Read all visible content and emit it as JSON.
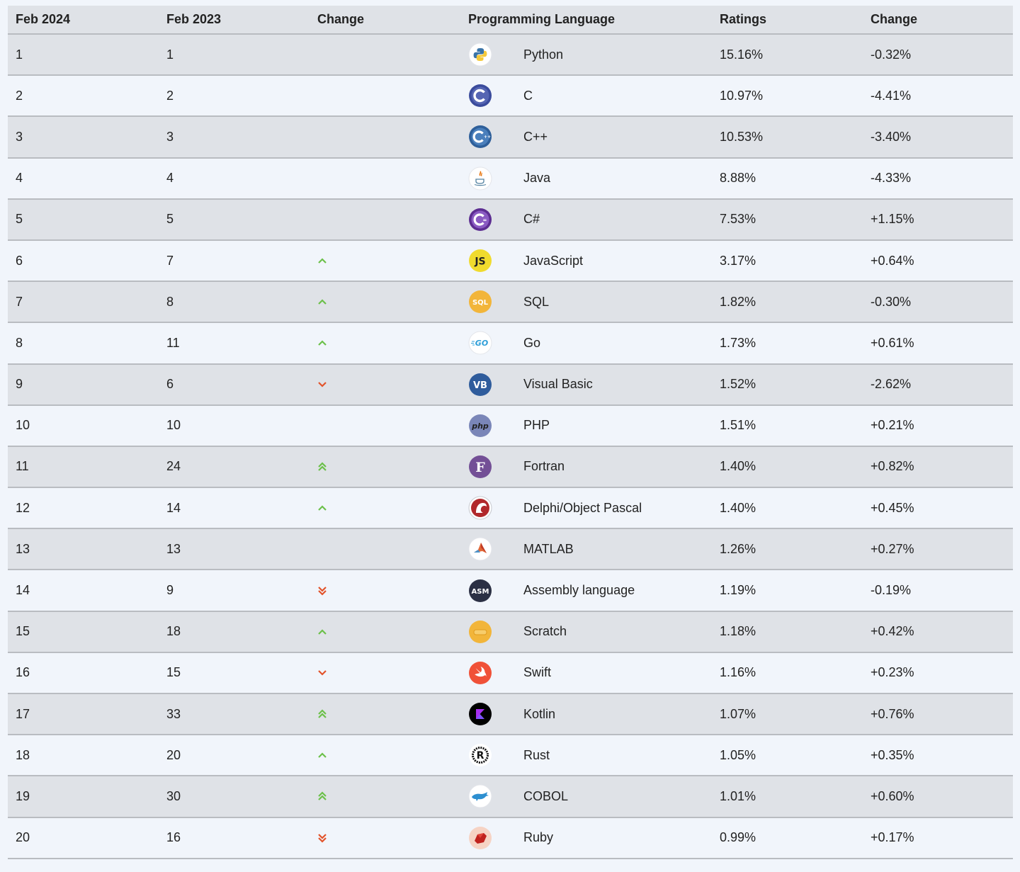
{
  "header": {
    "col_feb2024": "Feb 2024",
    "col_feb2023": "Feb 2023",
    "col_change": "Change",
    "col_language": "Programming Language",
    "col_ratings": "Ratings",
    "col_change2": "Change"
  },
  "colors": {
    "up": "#6cc04a",
    "down": "#e2532a",
    "row_alt": "#dfe2e7",
    "row_plain": "#f1f5fb",
    "border": "#b9bcc1"
  },
  "rows": [
    {
      "rank2024": "1",
      "rank2023": "1",
      "trend": "none",
      "icon": "python-icon",
      "language": "Python",
      "rating": "15.16%",
      "change": "-0.32%"
    },
    {
      "rank2024": "2",
      "rank2023": "2",
      "trend": "none",
      "icon": "c-icon",
      "language": "C",
      "rating": "10.97%",
      "change": "-4.41%"
    },
    {
      "rank2024": "3",
      "rank2023": "3",
      "trend": "none",
      "icon": "cpp-icon",
      "language": "C++",
      "rating": "10.53%",
      "change": "-3.40%"
    },
    {
      "rank2024": "4",
      "rank2023": "4",
      "trend": "none",
      "icon": "java-icon",
      "language": "Java",
      "rating": "8.88%",
      "change": "-4.33%"
    },
    {
      "rank2024": "5",
      "rank2023": "5",
      "trend": "none",
      "icon": "csharp-icon",
      "language": "C#",
      "rating": "7.53%",
      "change": "+1.15%"
    },
    {
      "rank2024": "6",
      "rank2023": "7",
      "trend": "up",
      "icon": "javascript-icon",
      "language": "JavaScript",
      "rating": "3.17%",
      "change": "+0.64%"
    },
    {
      "rank2024": "7",
      "rank2023": "8",
      "trend": "up",
      "icon": "sql-icon",
      "language": "SQL",
      "rating": "1.82%",
      "change": "-0.30%"
    },
    {
      "rank2024": "8",
      "rank2023": "11",
      "trend": "up",
      "icon": "go-icon",
      "language": "Go",
      "rating": "1.73%",
      "change": "+0.61%"
    },
    {
      "rank2024": "9",
      "rank2023": "6",
      "trend": "down",
      "icon": "visual-basic-icon",
      "language": "Visual Basic",
      "rating": "1.52%",
      "change": "-2.62%"
    },
    {
      "rank2024": "10",
      "rank2023": "10",
      "trend": "none",
      "icon": "php-icon",
      "language": "PHP",
      "rating": "1.51%",
      "change": "+0.21%"
    },
    {
      "rank2024": "11",
      "rank2023": "24",
      "trend": "double-up",
      "icon": "fortran-icon",
      "language": "Fortran",
      "rating": "1.40%",
      "change": "+0.82%"
    },
    {
      "rank2024": "12",
      "rank2023": "14",
      "trend": "up",
      "icon": "delphi-icon",
      "language": "Delphi/Object Pascal",
      "rating": "1.40%",
      "change": "+0.45%"
    },
    {
      "rank2024": "13",
      "rank2023": "13",
      "trend": "none",
      "icon": "matlab-icon",
      "language": "MATLAB",
      "rating": "1.26%",
      "change": "+0.27%"
    },
    {
      "rank2024": "14",
      "rank2023": "9",
      "trend": "double-down",
      "icon": "assembly-icon",
      "language": "Assembly language",
      "rating": "1.19%",
      "change": "-0.19%"
    },
    {
      "rank2024": "15",
      "rank2023": "18",
      "trend": "up",
      "icon": "scratch-icon",
      "language": "Scratch",
      "rating": "1.18%",
      "change": "+0.42%"
    },
    {
      "rank2024": "16",
      "rank2023": "15",
      "trend": "down",
      "icon": "swift-icon",
      "language": "Swift",
      "rating": "1.16%",
      "change": "+0.23%"
    },
    {
      "rank2024": "17",
      "rank2023": "33",
      "trend": "double-up",
      "icon": "kotlin-icon",
      "language": "Kotlin",
      "rating": "1.07%",
      "change": "+0.76%"
    },
    {
      "rank2024": "18",
      "rank2023": "20",
      "trend": "up",
      "icon": "rust-icon",
      "language": "Rust",
      "rating": "1.05%",
      "change": "+0.35%"
    },
    {
      "rank2024": "19",
      "rank2023": "30",
      "trend": "double-up",
      "icon": "cobol-icon",
      "language": "COBOL",
      "rating": "1.01%",
      "change": "+0.60%"
    },
    {
      "rank2024": "20",
      "rank2023": "16",
      "trend": "double-down",
      "icon": "ruby-icon",
      "language": "Ruby",
      "rating": "0.99%",
      "change": "+0.17%"
    }
  ]
}
